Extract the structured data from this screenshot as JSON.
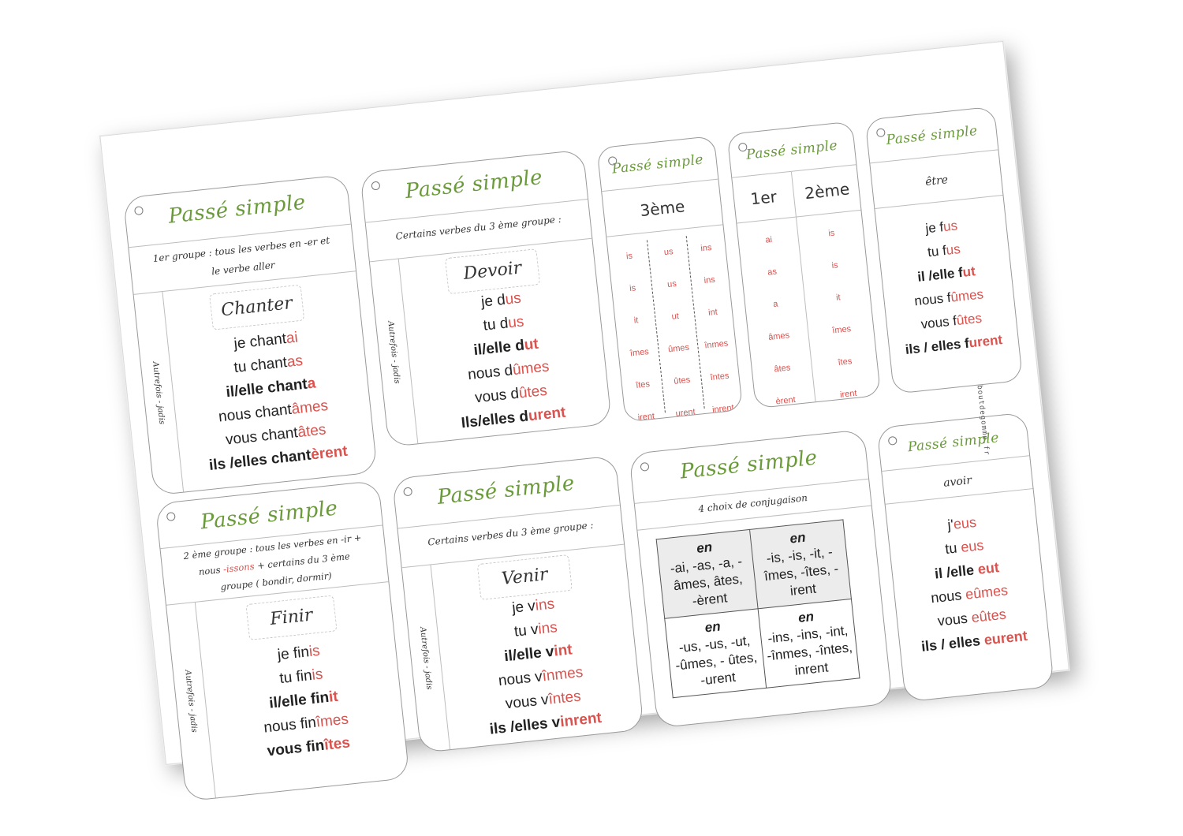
{
  "site": "boutdegomme.fr",
  "cards": {
    "chanter": {
      "title": "Passé simple",
      "subtitle_1": "1er groupe : tous les verbes en -er et",
      "subtitle_2": "le verbe aller",
      "sidebar": "Autrefois - jadis",
      "verb": "Chanter",
      "lines": [
        {
          "stem": "je chant",
          "end": "ai"
        },
        {
          "stem": "tu chant",
          "end": "as"
        },
        {
          "stem": "il/elle chant",
          "end": "a"
        },
        {
          "stem": "nous chant",
          "end": "âmes"
        },
        {
          "stem": "vous chant",
          "end": "âtes"
        },
        {
          "stem": "ils /elles chant",
          "end": "èrent"
        }
      ]
    },
    "devoir": {
      "title": "Passé simple",
      "subtitle": "Certains verbes du 3 ème groupe :",
      "sidebar": "Autrefois - jadis",
      "verb": "Devoir",
      "lines": [
        {
          "stem": "je d",
          "end": "us"
        },
        {
          "stem": "tu d",
          "end": "us"
        },
        {
          "stem": "il/elle  d",
          "end": "ut"
        },
        {
          "stem": "nous d",
          "end": "ûmes"
        },
        {
          "stem": "vous d",
          "end": "ûtes"
        },
        {
          "stem": "Ils/elles d",
          "end": "urent"
        }
      ]
    },
    "third": {
      "title": "Passé simple",
      "heading": "3ème",
      "col1": [
        "is",
        "is",
        "it",
        "îmes",
        "îtes",
        "irent"
      ],
      "col2": [
        "us",
        "us",
        "ut",
        "ûmes",
        "ûtes",
        "urent"
      ],
      "col3": [
        "ins",
        "ins",
        "int",
        "înmes",
        "întes",
        "inrent"
      ]
    },
    "firstsecond": {
      "title": "Passé simple",
      "heading_1": "1er",
      "heading_2": "2ème",
      "col1": [
        "ai",
        "as",
        "a",
        "âmes",
        "âtes",
        "èrent"
      ],
      "col2": [
        "is",
        "is",
        "it",
        "îmes",
        "îtes",
        "irent"
      ]
    },
    "etre": {
      "title": "Passé simple",
      "verb": "être",
      "lines": [
        {
          "stem": "je f",
          "end": "us"
        },
        {
          "stem": "tu f",
          "end": "us"
        },
        {
          "stem": "il /elle f",
          "end": "ut"
        },
        {
          "stem": "nous f",
          "end": "ûmes"
        },
        {
          "stem": "vous f",
          "end": "ûtes"
        },
        {
          "stem": "ils / elles f",
          "end": "urent"
        }
      ]
    },
    "finir": {
      "title": "Passé simple",
      "subtitle_1": "2 ème groupe : tous les verbes en -ir +",
      "subtitle_2a": "nous",
      "subtitle_2b": "-issons",
      "subtitle_2c": "+ certains du 3 ème",
      "subtitle_3": "groupe ( bondir, dormir)",
      "sidebar": "Autrefois - jadis",
      "verb": "Finir",
      "lines": [
        {
          "stem": "je fin",
          "end": "is"
        },
        {
          "stem": "tu fin",
          "end": "is"
        },
        {
          "stem": "il/elle fin",
          "end": "it"
        },
        {
          "stem": "nous fin",
          "end": "îmes"
        },
        {
          "stem": "vous fin",
          "end": "îtes"
        }
      ]
    },
    "venir": {
      "title": "Passé simple",
      "subtitle": "Certains verbes du 3 ème groupe :",
      "sidebar": "Autrefois - jadis",
      "verb": "Venir",
      "lines": [
        {
          "stem": "je v",
          "end": "ins"
        },
        {
          "stem": "tu v",
          "end": "ins"
        },
        {
          "stem": "il/elle  v",
          "end": "int"
        },
        {
          "stem": "nous  v",
          "end": "înmes"
        },
        {
          "stem": "vous  v",
          "end": "întes"
        },
        {
          "stem": "ils /elles v",
          "end": "inrent"
        }
      ]
    },
    "choix": {
      "title": "Passé simple",
      "subtitle": "4 choix de conjugaison",
      "cells": [
        {
          "en": "en",
          "text": "-ai, -as, -a, - âmes, âtes, -èrent"
        },
        {
          "en": "en",
          "text": "-is, -is, -it, - îmes, -îtes, - irent"
        },
        {
          "en": "en",
          "text": "-us, -us, -ut, -ûmes, - ûtes, -urent"
        },
        {
          "en": "en",
          "text": "-ins, -ins, -int, -înmes, -întes, inrent"
        }
      ]
    },
    "avoir": {
      "title": "Passé simple",
      "verb": "avoir",
      "lines": [
        {
          "stem": "j'",
          "end": "eus"
        },
        {
          "stem": "tu ",
          "end": "eus"
        },
        {
          "stem": "il /elle ",
          "end": "eut"
        },
        {
          "stem": "nous ",
          "end": "eûmes"
        },
        {
          "stem": "vous ",
          "end": "eûtes"
        },
        {
          "stem": "ils / elles ",
          "end": "eurent"
        }
      ]
    }
  },
  "colors": {
    "title_green": "#6a9a3a",
    "ending_red": "#d9534f"
  }
}
